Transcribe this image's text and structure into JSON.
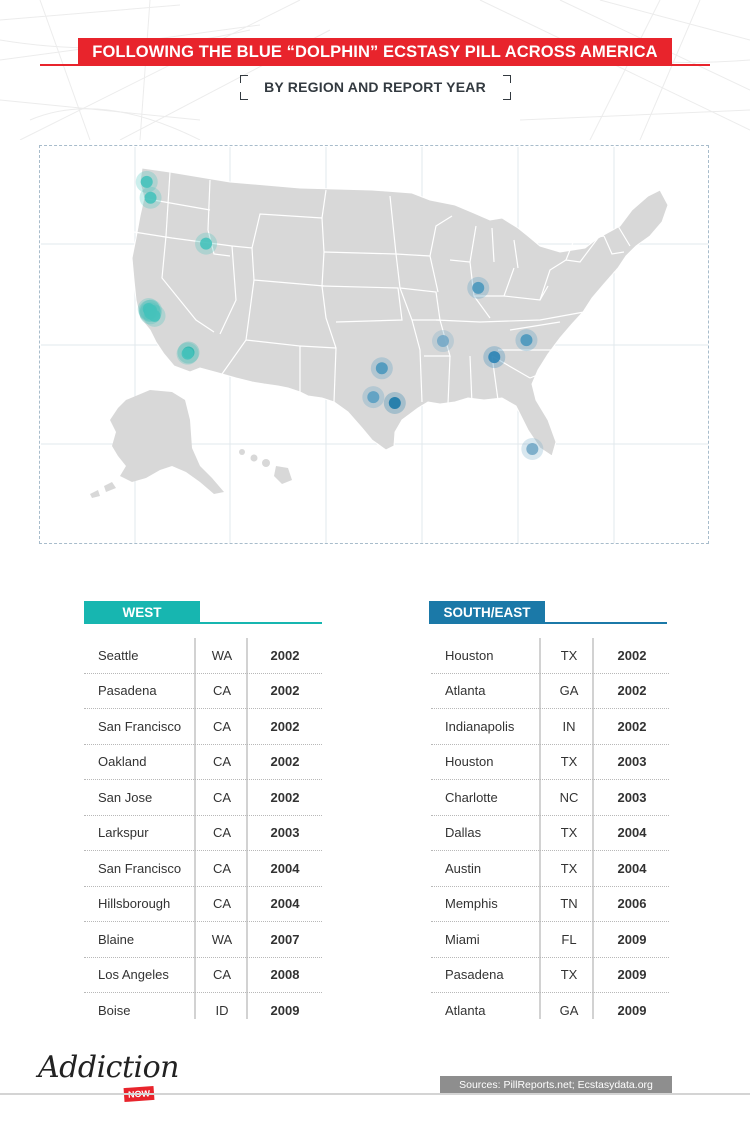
{
  "header": {
    "title": "FOLLOWING THE BLUE “DOLPHIN” ECSTASY PILL ACROSS AMERICA",
    "subtitle": "BY REGION AND REPORT YEAR"
  },
  "colors": {
    "accent_red": "#e8242c",
    "west": "#17b6b0",
    "south_east": "#1b79a8",
    "land": "#d8d8d8",
    "state_border": "#ffffff"
  },
  "map": {
    "markers": [
      {
        "label": "Blaine",
        "lon": -122.75,
        "lat": 48.99,
        "color": "#46c2bb"
      },
      {
        "label": "Seattle",
        "lon": -122.33,
        "lat": 47.61,
        "color": "#46c2bb"
      },
      {
        "label": "Boise",
        "lon": -116.2,
        "lat": 43.62,
        "color": "#46c2bb"
      },
      {
        "label": "San Francisco",
        "lon": -122.42,
        "lat": 37.77,
        "color": "#1cb5ae"
      },
      {
        "label": "Larkspur",
        "lon": -122.53,
        "lat": 37.93,
        "color": "#46c2bb"
      },
      {
        "label": "Oakland",
        "lon": -122.27,
        "lat": 37.8,
        "color": "#46c2bb"
      },
      {
        "label": "Hillsborough",
        "lon": -122.35,
        "lat": 37.56,
        "color": "#46c2bb"
      },
      {
        "label": "San Jose",
        "lon": -121.89,
        "lat": 37.34,
        "color": "#46c2bb"
      },
      {
        "label": "Pasadena",
        "lon": -118.14,
        "lat": 34.15,
        "color": "#27b1a8"
      },
      {
        "label": "Los Angeles",
        "lon": -118.24,
        "lat": 34.05,
        "color": "#46c2bb"
      },
      {
        "label": "Indianapolis",
        "lon": -86.16,
        "lat": 39.77,
        "color": "#4a97bd"
      },
      {
        "label": "Memphis",
        "lon": -90.05,
        "lat": 35.15,
        "color": "#74a9c6"
      },
      {
        "label": "Charlotte",
        "lon": -80.84,
        "lat": 35.23,
        "color": "#4a97bd"
      },
      {
        "label": "Atlanta",
        "lon": -84.39,
        "lat": 33.75,
        "color": "#2b83b5"
      },
      {
        "label": "Dallas",
        "lon": -96.8,
        "lat": 32.78,
        "color": "#4a97bd"
      },
      {
        "label": "Austin",
        "lon": -97.74,
        "lat": 30.27,
        "color": "#5a9fc2"
      },
      {
        "label": "Houston",
        "lon": -95.37,
        "lat": 29.76,
        "color": "#1b79a8"
      },
      {
        "label": "Miami",
        "lon": -80.19,
        "lat": 25.76,
        "color": "#74a9c6"
      }
    ]
  },
  "west": {
    "heading": "WEST",
    "rows": [
      {
        "city": "Seattle",
        "state": "WA",
        "year": "2002"
      },
      {
        "city": "Pasadena",
        "state": "CA",
        "year": "2002"
      },
      {
        "city": "San Francisco",
        "state": "CA",
        "year": "2002"
      },
      {
        "city": "Oakland",
        "state": "CA",
        "year": "2002"
      },
      {
        "city": "San Jose",
        "state": "CA",
        "year": "2002"
      },
      {
        "city": "Larkspur",
        "state": "CA",
        "year": "2003"
      },
      {
        "city": "San Francisco",
        "state": "CA",
        "year": "2004"
      },
      {
        "city": "Hillsborough",
        "state": "CA",
        "year": "2004"
      },
      {
        "city": "Blaine",
        "state": "WA",
        "year": "2007"
      },
      {
        "city": "Los Angeles",
        "state": "CA",
        "year": "2008"
      },
      {
        "city": "Boise",
        "state": "ID",
        "year": "2009"
      }
    ]
  },
  "south_east": {
    "heading": "SOUTH/EAST",
    "rows": [
      {
        "city": "Houston",
        "state": "TX",
        "year": "2002"
      },
      {
        "city": "Atlanta",
        "state": "GA",
        "year": "2002"
      },
      {
        "city": "Indianapolis",
        "state": "IN",
        "year": "2002"
      },
      {
        "city": "Houston",
        "state": "TX",
        "year": "2003"
      },
      {
        "city": "Charlotte",
        "state": "NC",
        "year": "2003"
      },
      {
        "city": "Dallas",
        "state": "TX",
        "year": "2004"
      },
      {
        "city": "Austin",
        "state": "TX",
        "year": "2004"
      },
      {
        "city": "Memphis",
        "state": "TN",
        "year": "2006"
      },
      {
        "city": "Miami",
        "state": "FL",
        "year": "2009"
      },
      {
        "city": "Pasadena",
        "state": "TX",
        "year": "2009"
      },
      {
        "city": "Atlanta",
        "state": "GA",
        "year": "2009"
      }
    ]
  },
  "footer": {
    "logo_text": "Addiction",
    "logo_badge": "NOW",
    "sources": "Sources: PillReports.net; Ecstasydata.org"
  }
}
